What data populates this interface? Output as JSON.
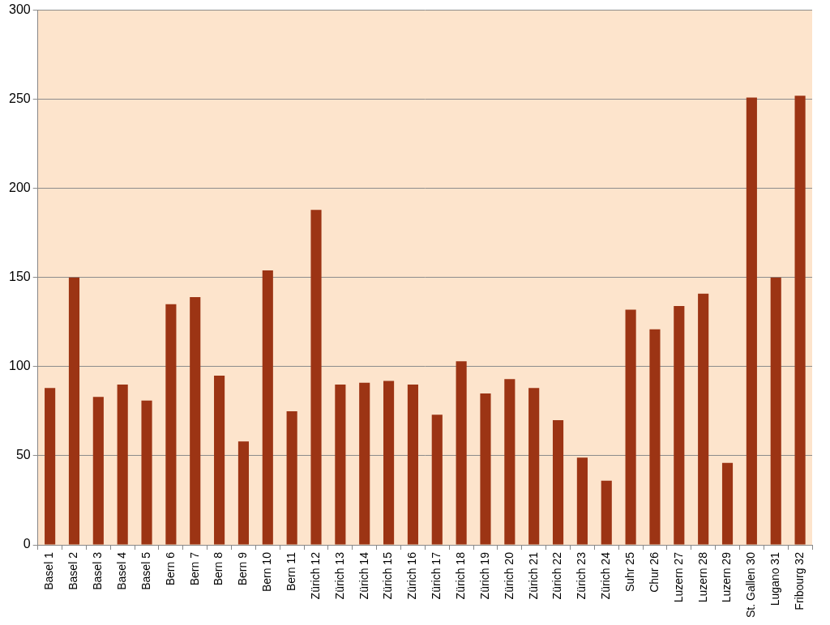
{
  "chart_data": {
    "type": "bar",
    "categories": [
      "Basel 1",
      "Basel 2",
      "Basel 3",
      "Basel 4",
      "Basel 5",
      "Bern 6",
      "Bern 7",
      "Bern 8",
      "Bern 9",
      "Bern 10",
      "Bern 11",
      "Zürich 12",
      "Zürich 13",
      "Zürich 14",
      "Zürich 15",
      "Zürich 16",
      "Zürich 17",
      "Zürich 18",
      "Zürich 19",
      "Zürich 20",
      "Zürich 21",
      "Zürich 22",
      "Zürich 23",
      "Zürich 24",
      "Suhr 25",
      "Chur 26",
      "Luzern 27",
      "Luzern 28",
      "Luzern 29",
      "St. Gallen 30",
      "Lugano 31",
      "Fribourg 32"
    ],
    "values": [
      88,
      150,
      83,
      90,
      81,
      135,
      139,
      95,
      58,
      154,
      75,
      188,
      90,
      91,
      92,
      90,
      73,
      103,
      85,
      93,
      88,
      70,
      49,
      36,
      132,
      121,
      134,
      141,
      46,
      251,
      150,
      252
    ],
    "color": "#9c3414",
    "ylim": [
      0,
      300
    ],
    "yticks": [
      0,
      50,
      100,
      150,
      200,
      250,
      300
    ],
    "grid": true
  }
}
